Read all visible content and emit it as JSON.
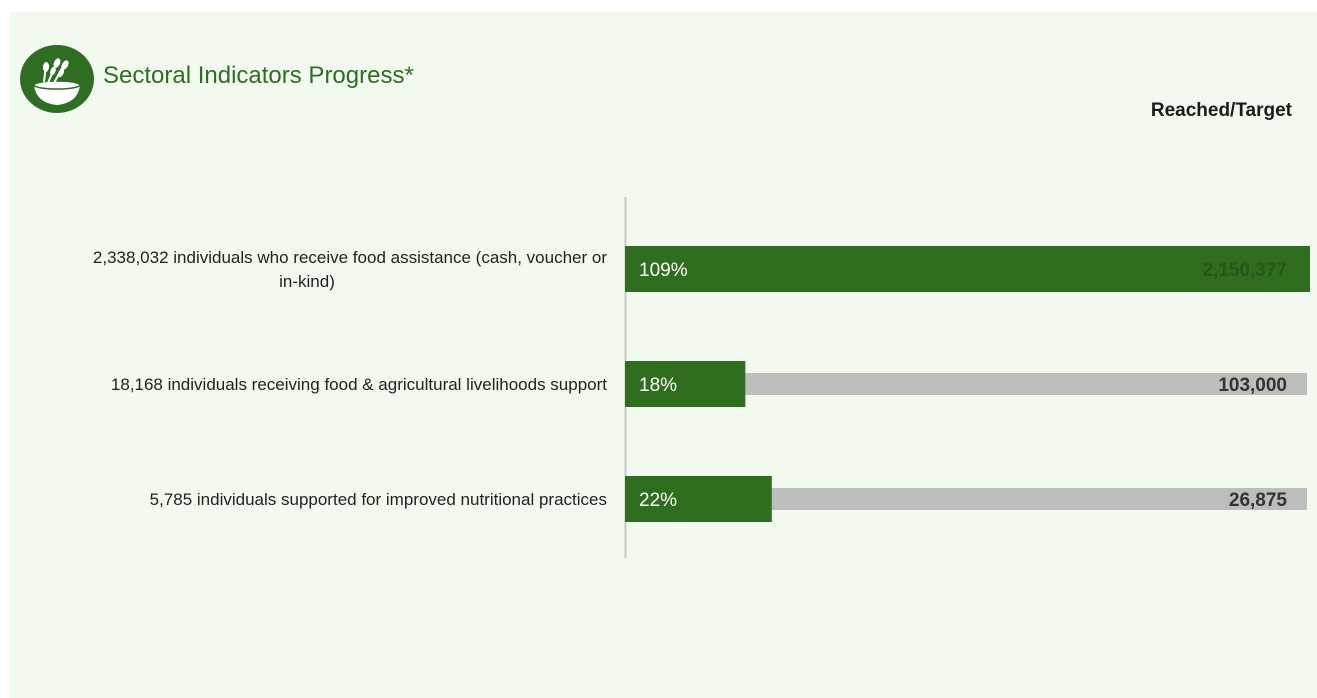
{
  "header": {
    "title": "Sectoral Indicators Progress*",
    "column_title": "Reached/Target",
    "logo_icon": "wheat-bowl-icon"
  },
  "colors": {
    "background": "#f2f9ef",
    "reached_bar": "#2f6e1f",
    "target_track": "#bdbdbd",
    "title": "#2f6e22",
    "logo": "#2f6e22"
  },
  "chart_data": {
    "type": "bar",
    "orientation": "horizontal",
    "title": "Sectoral Indicators Progress*",
    "categories": [
      "2,338,032 individuals who receive food assistance (cash, voucher or in-kind)",
      "18,168 individuals receiving food & agricultural livelihoods support",
      "5,785 individuals supported for improved nutritional practices"
    ],
    "series": [
      {
        "name": "",
        "values": [
          2338032,
          18168,
          5785
        ],
        "percent_labels": [
          "109%",
          "18%",
          "22%"
        ]
      }
    ],
    "targets": [
      2150377,
      103000,
      26875
    ],
    "target_labels": [
      "2,150,377",
      "103,000",
      "26,875"
    ],
    "label_lines": [
      [
        "2,338,032 individuals who receive food assistance (cash, voucher or",
        "in-kind)"
      ],
      [
        "18,168 individuals receiving food & agricultural livelihoods support"
      ],
      [
        "5,785 individuals supported for improved nutritional practices"
      ]
    ],
    "percent_scale_max": 1.0,
    "grid": false
  }
}
